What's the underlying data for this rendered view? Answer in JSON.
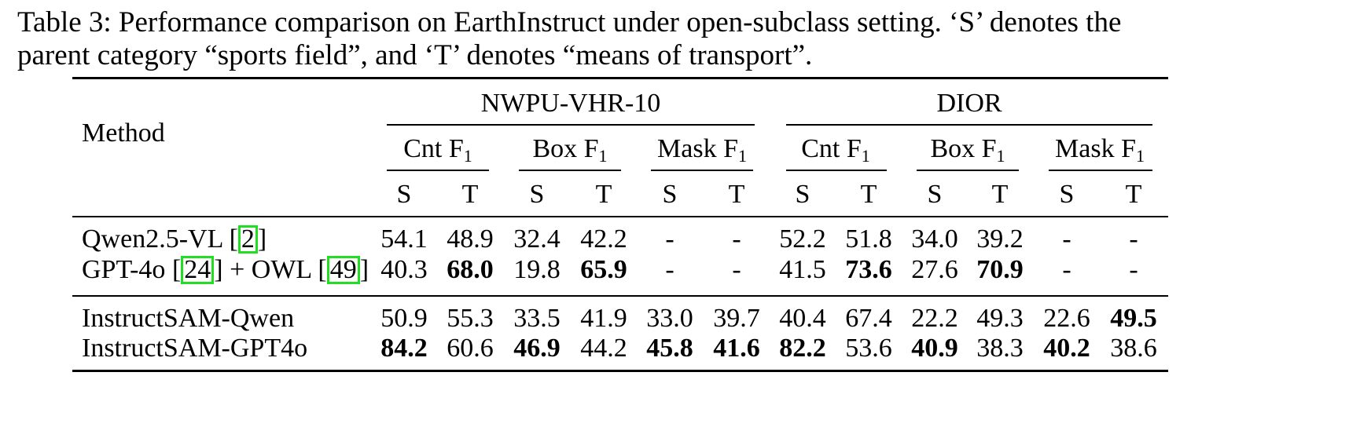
{
  "caption": {
    "line1": "Table 3: Performance comparison on EarthInstruct under open-subclass setting. ‘S’ denotes the",
    "line2": "parent category “sports field”, and ‘T’ denotes “means of transport”."
  },
  "header": {
    "method": "Method",
    "dataset_nwpu": "NWPU-VHR-10",
    "dataset_dior": "DIOR",
    "metrics": [
      {
        "name": "Cnt F",
        "sub": "1"
      },
      {
        "name": "Box F",
        "sub": "1"
      },
      {
        "name": "Mask F",
        "sub": "1"
      }
    ],
    "s": "S",
    "t": "T"
  },
  "rows": [
    {
      "method": "Qwen2.5-VL ",
      "cites": [
        "2"
      ],
      "vals": [
        "54.1",
        "48.9",
        "32.4",
        "42.2",
        "-",
        "-",
        "52.2",
        "51.8",
        "34.0",
        "39.2",
        "-",
        "-"
      ]
    },
    {
      "method": "GPT-4o ",
      "mid": " + OWL ",
      "cites": [
        "24",
        "49"
      ],
      "vals": [
        "40.3",
        "68.0",
        "19.8",
        "65.9",
        "-",
        "-",
        "41.5",
        "73.6",
        "27.6",
        "70.9",
        "-",
        "-"
      ]
    },
    {
      "method": "InstructSAM-Qwen",
      "vals": [
        "50.9",
        "55.3",
        "33.5",
        "41.9",
        "33.0",
        "39.7",
        "40.4",
        "67.4",
        "22.2",
        "49.3",
        "22.6",
        "49.5"
      ]
    },
    {
      "method": "InstructSAM-GPT4o",
      "vals": [
        "84.2",
        "60.6",
        "46.9",
        "44.2",
        "45.8",
        "41.6",
        "82.2",
        "53.6",
        "40.9",
        "38.3",
        "40.2",
        "38.6"
      ]
    }
  ]
}
